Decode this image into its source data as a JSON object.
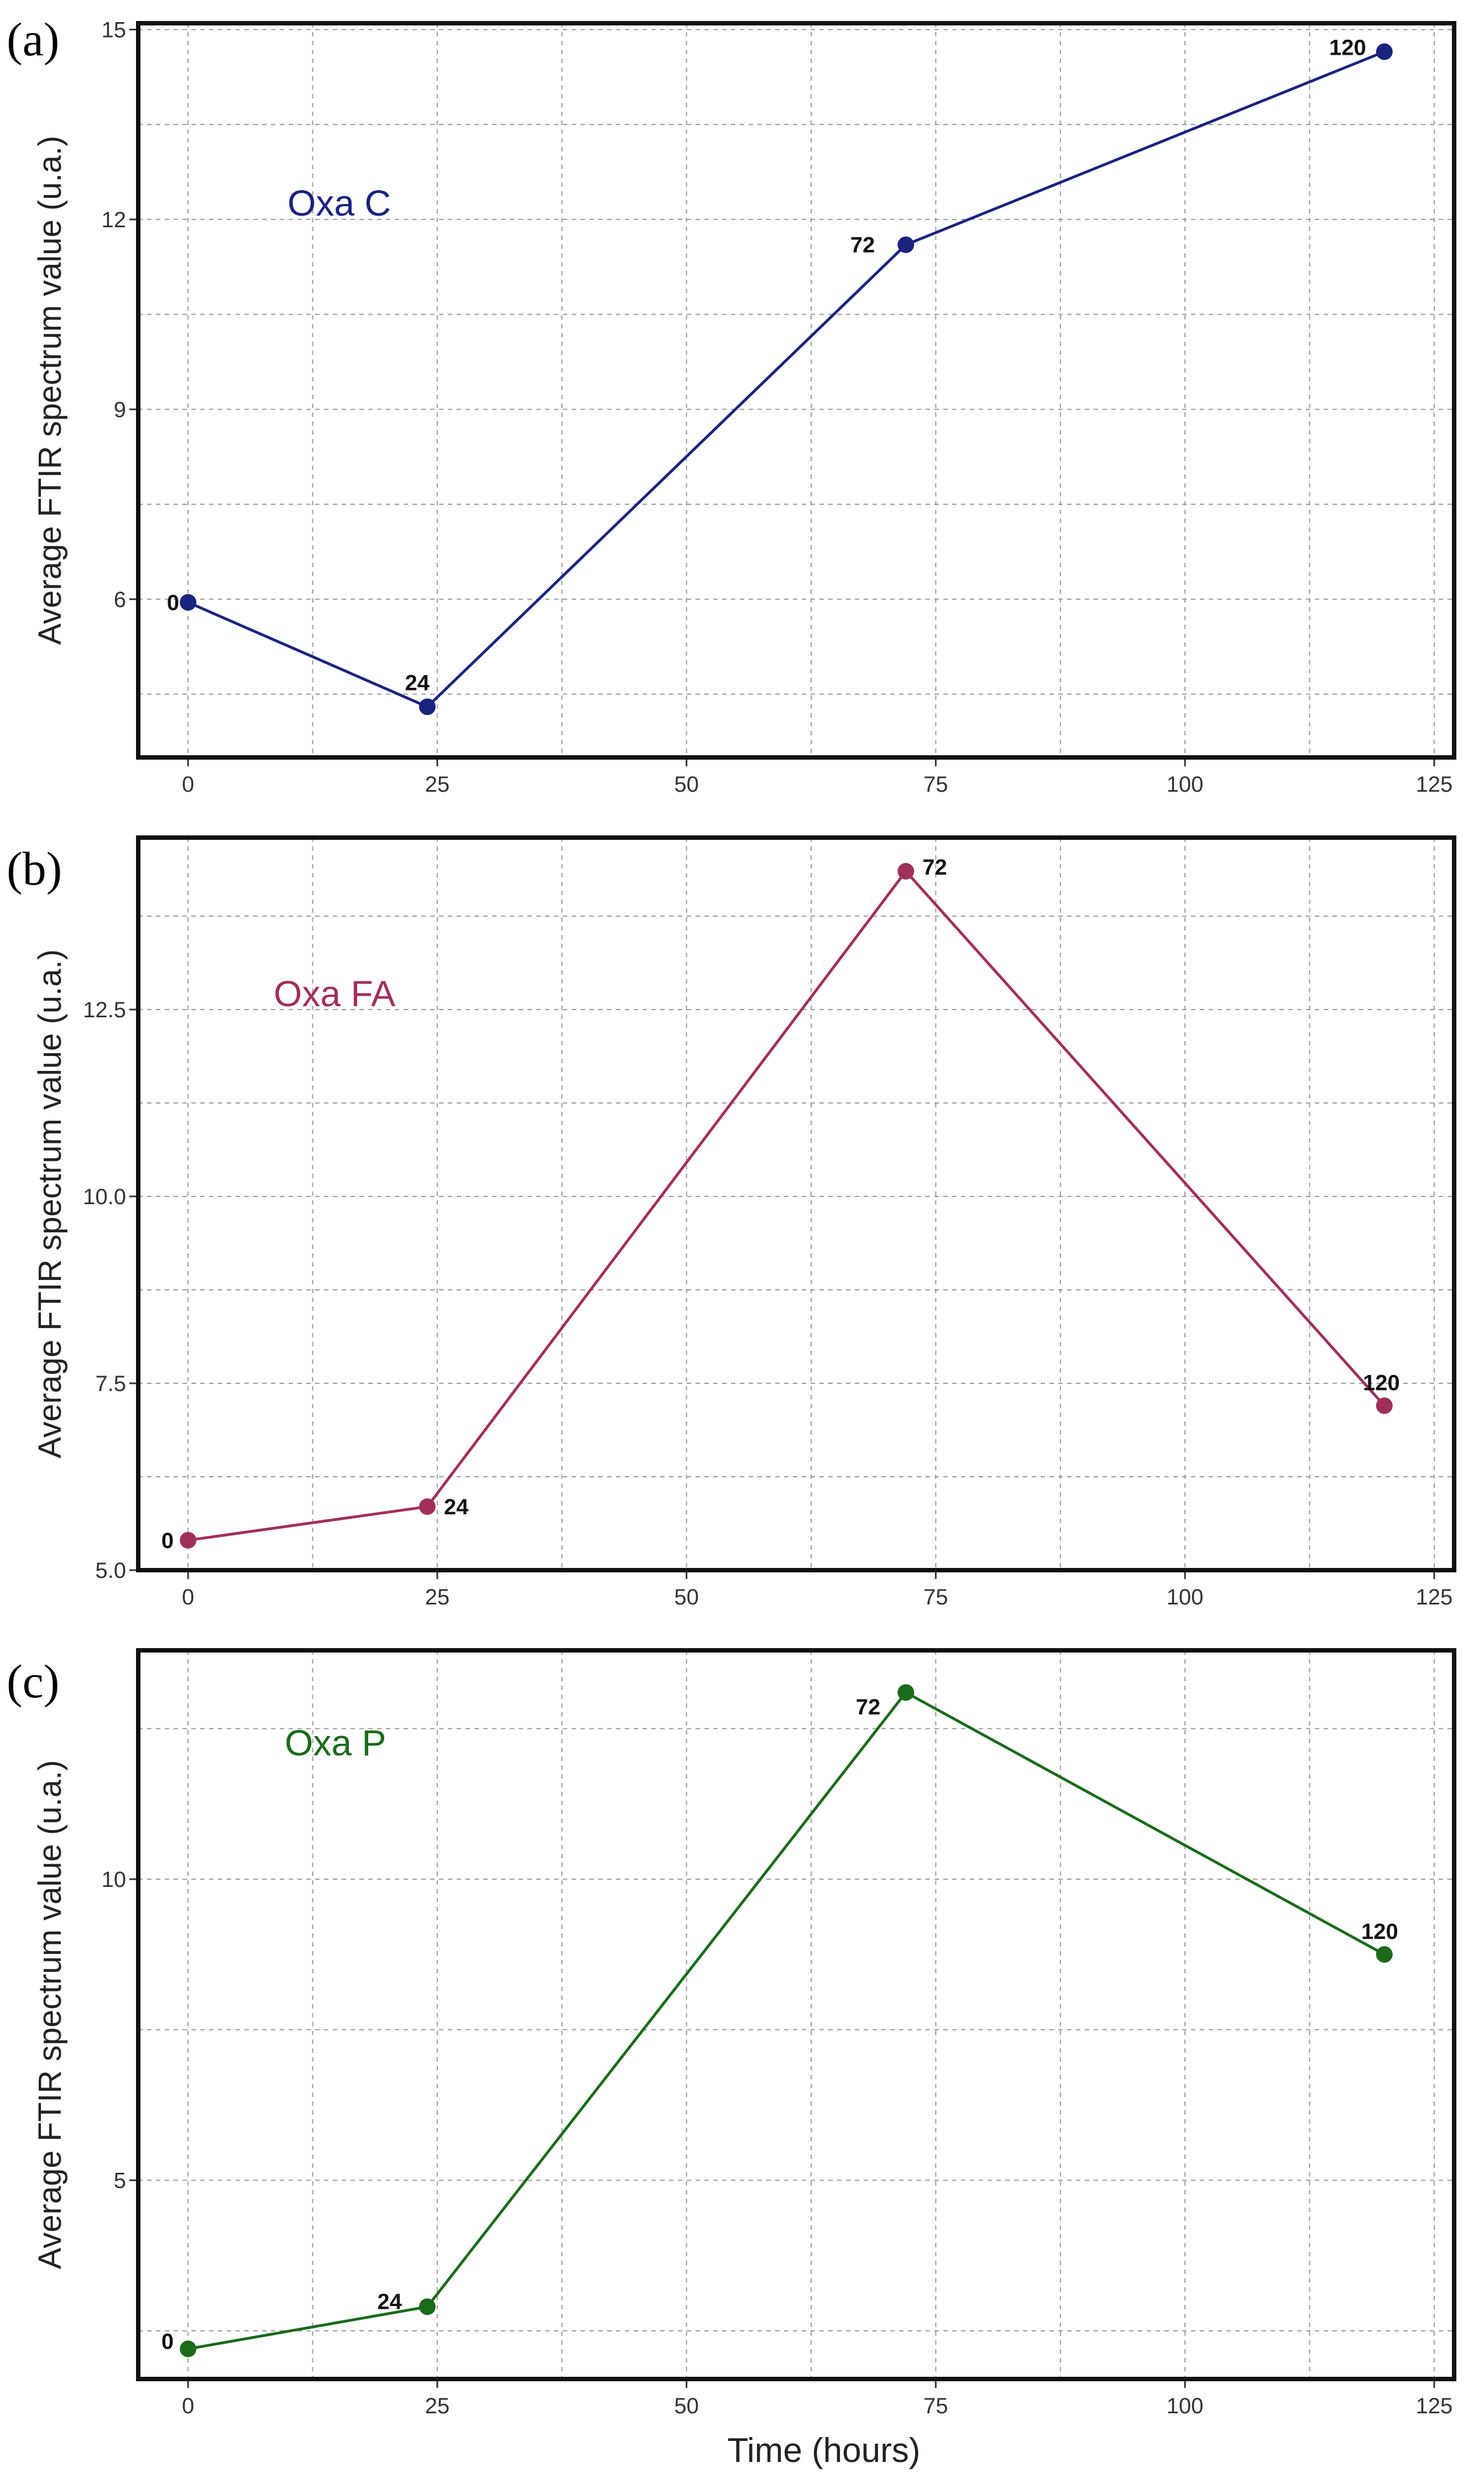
{
  "chart_data": [
    {
      "type": "line",
      "panel_label": "(a)",
      "series_name": "Oxa C",
      "color": "#1a237e",
      "x": [
        0,
        24,
        72,
        120
      ],
      "y": [
        5.95,
        4.3,
        11.6,
        14.65
      ],
      "point_labels": [
        "0",
        "24",
        "72",
        "120"
      ],
      "xlabel": "",
      "ylabel": "Average FTIR spectrum value (u.a.)",
      "xlim": [
        -5,
        127
      ],
      "ylim": [
        3.5,
        15.1
      ],
      "xticks": [
        0,
        25,
        50,
        75,
        100,
        125
      ],
      "xtick_labels": [
        "0",
        "25",
        "50",
        "75",
        "100",
        "125"
      ],
      "yticks": [
        6,
        9,
        12,
        15
      ],
      "ytick_labels": [
        "6",
        "9",
        "12",
        "15"
      ],
      "grid": true
    },
    {
      "type": "line",
      "panel_label": "(b)",
      "series_name": "Oxa FA",
      "color": "#a0305a",
      "x": [
        0,
        24,
        72,
        120
      ],
      "y": [
        5.4,
        5.85,
        14.35,
        7.2
      ],
      "point_labels": [
        "0",
        "24",
        "72",
        "120"
      ],
      "xlabel": "",
      "ylabel": "Average FTIR spectrum value (u.a.)",
      "xlim": [
        -5,
        127
      ],
      "ylim": [
        5.0,
        14.8
      ],
      "xticks": [
        0,
        25,
        50,
        75,
        100,
        125
      ],
      "xtick_labels": [
        "0",
        "25",
        "50",
        "75",
        "100",
        "125"
      ],
      "yticks": [
        5,
        7.5,
        10,
        12.5
      ],
      "ytick_labels": [
        "5.0",
        "7.5",
        "10.0",
        "12.5"
      ],
      "grid": true
    },
    {
      "type": "line",
      "panel_label": "(c)",
      "series_name": "Oxa P",
      "color": "#1b6b1b",
      "x": [
        0,
        24,
        72,
        120
      ],
      "y": [
        2.2,
        2.9,
        13.1,
        8.75
      ],
      "point_labels": [
        "0",
        "24",
        "72",
        "120"
      ],
      "xlabel": "Time (hours)",
      "ylabel": "Average FTIR spectrum value (u.a.)",
      "xlim": [
        -5,
        127
      ],
      "ylim": [
        1.7,
        13.8
      ],
      "xticks": [
        0,
        25,
        50,
        75,
        100,
        125
      ],
      "xtick_labels": [
        "0",
        "25",
        "50",
        "75",
        "100",
        "125"
      ],
      "yticks": [
        5,
        10
      ],
      "ytick_labels": [
        "5",
        "10"
      ],
      "grid": true
    }
  ]
}
